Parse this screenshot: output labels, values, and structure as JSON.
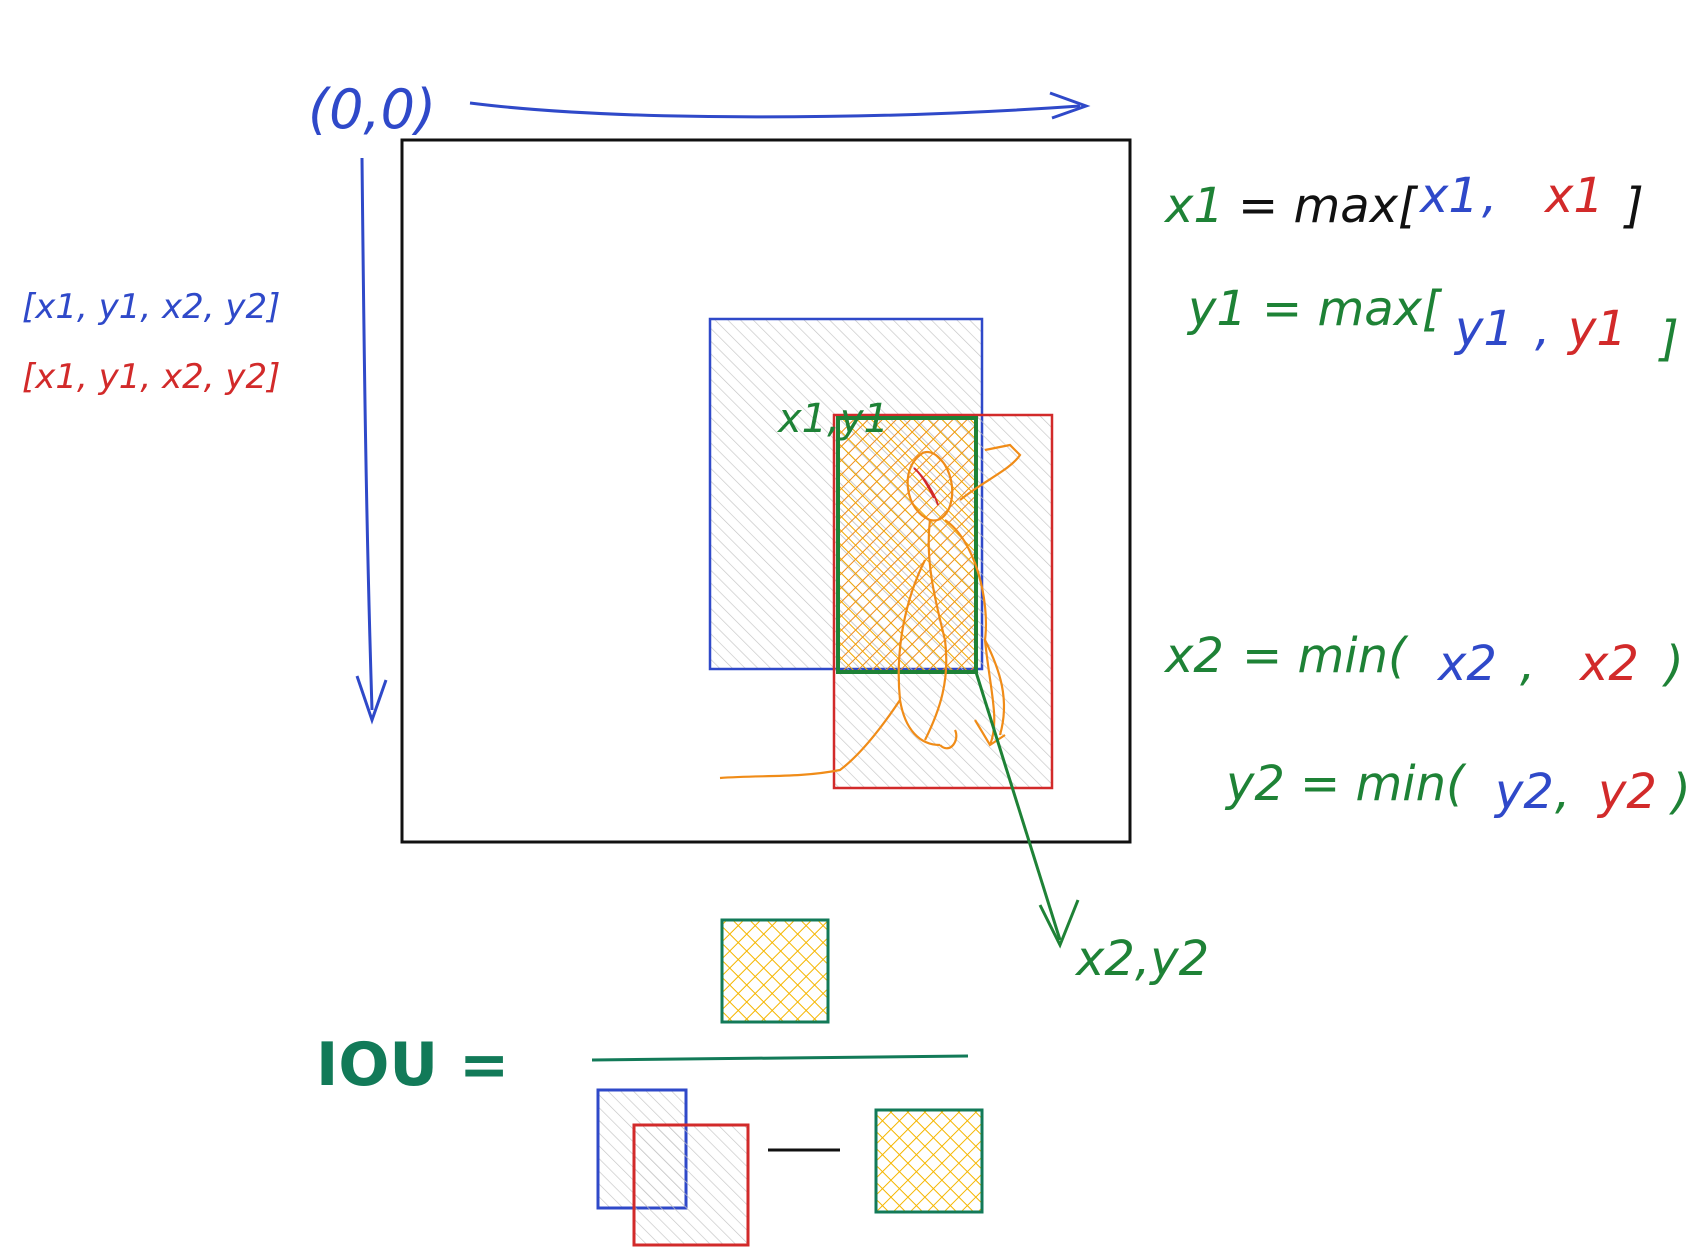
{
  "colors": {
    "blue": "#2f49c9",
    "red": "#d22a2a",
    "green": "#1e8236",
    "teal": "#127a58",
    "orange": "#f08c18",
    "yellow": "#f5b600",
    "black": "#111111",
    "hatch": "#bdbdbd"
  },
  "labels": {
    "origin": "(0,0)",
    "bbox_blue": "[x1, y1, x2, y2]",
    "bbox_red": "[x1, y1, x2, y2]",
    "topleft_label": "x1,y1",
    "bottomright_label": "x2,y2",
    "iou_label": "IOU ="
  },
  "formulas": {
    "x1": {
      "lhs": "x1",
      "fn": "= max[",
      "a": "x1",
      "sep": ",",
      "b": "x1",
      "close": "]"
    },
    "y1": {
      "lhs": "y1",
      "fn": "= max[",
      "a": "y1",
      "sep": ",",
      "b": "y1",
      "close": "]"
    },
    "x2": {
      "lhs": "x2",
      "fn": "= min(",
      "a": "x2",
      "sep": ",",
      "b": "x2",
      "close": ")"
    },
    "y2": {
      "lhs": "y2",
      "fn": "= min(",
      "a": "y2",
      "sep": ",",
      "b": "y2",
      "close": ")"
    }
  },
  "icons": {
    "person": "person-sketch-icon",
    "axis_x": "x-axis-arrow-icon",
    "axis_y": "y-axis-arrow-icon"
  }
}
